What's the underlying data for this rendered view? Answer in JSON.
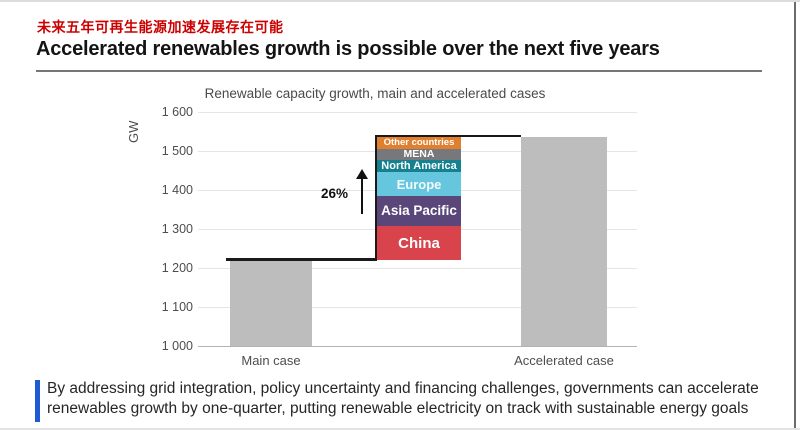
{
  "header": {
    "subtitle_zh": "未来五年可再生能源加速发展存在可能",
    "title_en": "Accelerated renewables growth is possible over the next five years"
  },
  "footer": {
    "caption": "By addressing grid integration, policy uncertainty and financing challenges, governments can accelerate renewables growth by one-quarter, putting renewable electricity on track with sustainable energy goals"
  },
  "colors": {
    "heading_red": "#cc0000",
    "caption_bar_blue": "#1e5ad4",
    "case_bar_gray": "#bdbdbd",
    "step_line_black": "#1a1a1a",
    "gridline_gray": "#e5e5e5",
    "axis_line_gray": "#b3b3b3",
    "axis_text_gray": "#4d4d4d"
  },
  "chart_data": {
    "type": "bar",
    "title": "Renewable capacity growth, main and accelerated cases",
    "ylabel": "GW",
    "ylim": [
      1000,
      1600
    ],
    "ytick_step": 100,
    "grid": true,
    "legend_position": "none",
    "categories": [
      "Main case",
      "Accelerated case"
    ],
    "main_case_total_gw": 1220,
    "accelerated_case_total_gw": 1536,
    "growth_annotation": "26%",
    "increment_segments": [
      {
        "name": "China",
        "value_gw": 88,
        "color": "#d9434b"
      },
      {
        "name": "Asia Pacific",
        "value_gw": 76,
        "color": "#5a4679"
      },
      {
        "name": "Europe",
        "value_gw": 61,
        "color": "#66c6dd"
      },
      {
        "name": "North America",
        "value_gw": 33,
        "color": "#15808f"
      },
      {
        "name": "MENA",
        "value_gw": 28,
        "color": "#77787b"
      },
      {
        "name": "Other countries",
        "value_gw": 30,
        "color": "#e0802f"
      }
    ]
  }
}
